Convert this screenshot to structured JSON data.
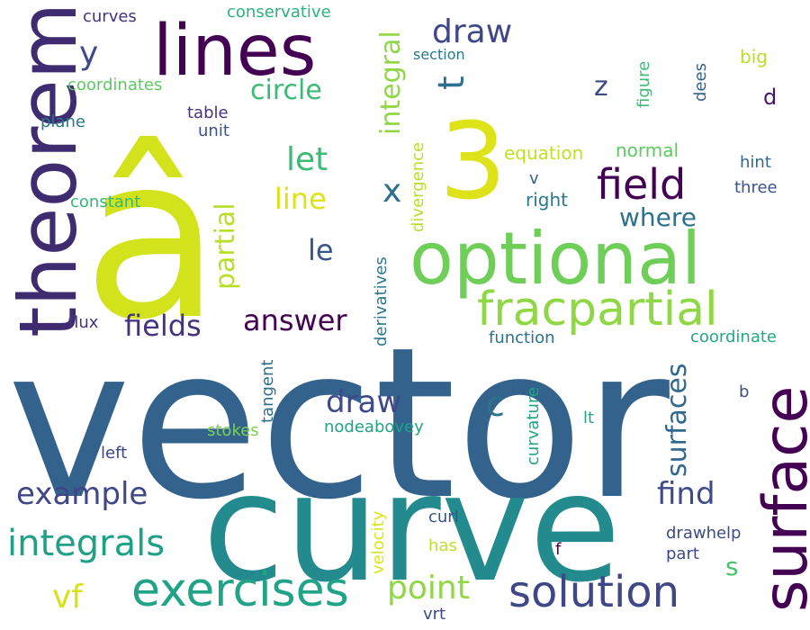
{
  "word_cloud": {
    "words": [
      {
        "text": "vector",
        "color": "#33638d"
      },
      {
        "text": "curve",
        "color": "#238a8d"
      },
      {
        "text": "â",
        "color": "#d2e21b"
      },
      {
        "text": "lines",
        "color": "#440154"
      },
      {
        "text": "3",
        "color": "#dde318"
      },
      {
        "text": "optional",
        "color": "#6ece58"
      },
      {
        "text": "theorem",
        "color": "#3f2c70"
      },
      {
        "text": "surface",
        "color": "#440154"
      },
      {
        "text": "fracpartial",
        "color": "#8fd744"
      },
      {
        "text": "exercises",
        "color": "#20a386"
      },
      {
        "text": "solution",
        "color": "#3f4788"
      },
      {
        "text": "field",
        "color": "#440154"
      },
      {
        "text": "integrals",
        "color": "#1fa187"
      },
      {
        "text": "example",
        "color": "#3f4788"
      },
      {
        "text": "point",
        "color": "#8fd744"
      },
      {
        "text": "integral",
        "color": "#8fd744"
      },
      {
        "text": "partial",
        "color": "#b8de29"
      },
      {
        "text": "draw",
        "color": "#3f4788"
      },
      {
        "text": "answer",
        "color": "#440154"
      },
      {
        "text": "fields",
        "color": "#46337e"
      },
      {
        "text": "find",
        "color": "#3e4a89"
      },
      {
        "text": "surfaces",
        "color": "#31688e"
      },
      {
        "text": "let",
        "color": "#3bbb75"
      },
      {
        "text": "draw",
        "color": "#3e4989"
      },
      {
        "text": "circle",
        "color": "#3bbb75"
      },
      {
        "text": "where",
        "color": "#2c728e"
      },
      {
        "text": "line",
        "color": "#dde318"
      },
      {
        "text": "vf",
        "color": "#d8e219"
      },
      {
        "text": "x",
        "color": "#2d708e"
      },
      {
        "text": "c",
        "color": "#2c728e"
      },
      {
        "text": "le",
        "color": "#39568c"
      },
      {
        "text": "y",
        "color": "#3e4a89"
      },
      {
        "text": "t",
        "color": "#2d708e"
      },
      {
        "text": "z",
        "color": "#3e4989"
      },
      {
        "text": "s",
        "color": "#4ac16d"
      },
      {
        "text": "divergence",
        "color": "#b8de29"
      },
      {
        "text": "derivatives",
        "color": "#2a788e"
      },
      {
        "text": "curvature",
        "color": "#20a386"
      },
      {
        "text": "figure",
        "color": "#3bbb75"
      },
      {
        "text": "dees",
        "color": "#33638d"
      },
      {
        "text": "big",
        "color": "#b8de29"
      },
      {
        "text": "d",
        "color": "#481668"
      },
      {
        "text": "equation",
        "color": "#c2df23"
      },
      {
        "text": "normal",
        "color": "#5ec962"
      },
      {
        "text": "hint",
        "color": "#31688e"
      },
      {
        "text": "three",
        "color": "#3b528b"
      },
      {
        "text": "v",
        "color": "#33638d"
      },
      {
        "text": "right",
        "color": "#2a788e"
      },
      {
        "text": "function",
        "color": "#2c728e"
      },
      {
        "text": "coordinate",
        "color": "#22a884"
      },
      {
        "text": "tangent",
        "color": "#2d708e"
      },
      {
        "text": "stokes",
        "color": "#7ad151"
      },
      {
        "text": "nodeaboveу",
        "color": "#20a386"
      },
      {
        "text": "curl",
        "color": "#3b528b"
      },
      {
        "text": "lt",
        "color": "#20a386"
      },
      {
        "text": "b",
        "color": "#3e4a89"
      },
      {
        "text": "left",
        "color": "#414487"
      },
      {
        "text": "velocity",
        "color": "#dde318"
      },
      {
        "text": "has",
        "color": "#bddf26"
      },
      {
        "text": "f",
        "color": "#440154"
      },
      {
        "text": "drawhelp",
        "color": "#3e4a89"
      },
      {
        "text": "part",
        "color": "#3e4989"
      },
      {
        "text": "vrt",
        "color": "#3e4989"
      },
      {
        "text": "curves",
        "color": "#46327e"
      },
      {
        "text": "conservative",
        "color": "#2db27d"
      },
      {
        "text": "section",
        "color": "#2a788e"
      },
      {
        "text": "coordinates",
        "color": "#5ec962"
      },
      {
        "text": "plane",
        "color": "#2a788e"
      },
      {
        "text": "table",
        "color": "#46337e"
      },
      {
        "text": "unit",
        "color": "#3b528b"
      },
      {
        "text": "constant",
        "color": "#35b779"
      },
      {
        "text": "flux",
        "color": "#46337e"
      }
    ]
  }
}
